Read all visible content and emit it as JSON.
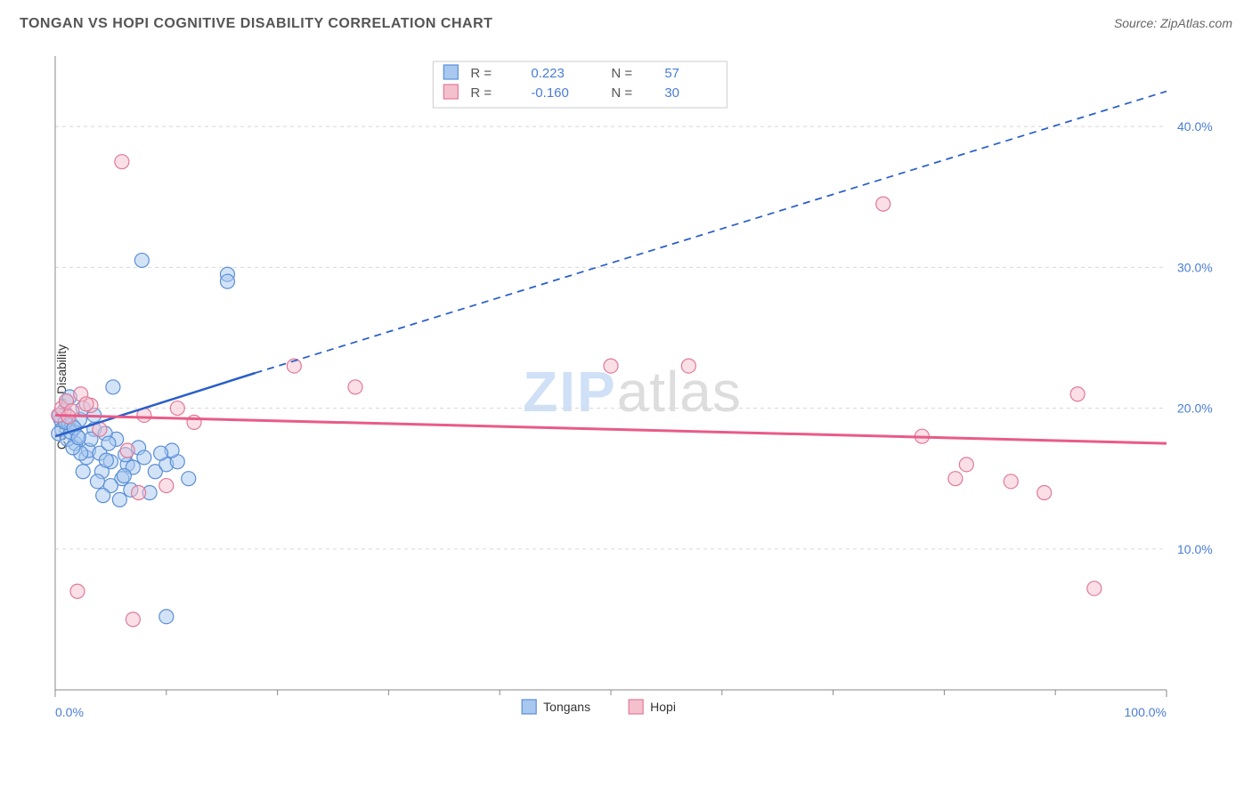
{
  "title": "TONGAN VS HOPI COGNITIVE DISABILITY CORRELATION CHART",
  "source": "Source: ZipAtlas.com",
  "y_label": "Cognitive Disability",
  "watermark_a": "ZIP",
  "watermark_b": "atlas",
  "chart": {
    "type": "scatter",
    "xlim": [
      0,
      100
    ],
    "ylim": [
      0,
      45
    ],
    "x_ticks": [
      0,
      100
    ],
    "x_tick_labels": [
      "0.0%",
      "100.0%"
    ],
    "x_minor_ticks": [
      10,
      20,
      30,
      40,
      50,
      60,
      70,
      80,
      90
    ],
    "y_ticks": [
      10,
      20,
      30,
      40
    ],
    "y_tick_labels": [
      "10.0%",
      "20.0%",
      "30.0%",
      "40.0%"
    ],
    "grid_color": "#d8d8d8",
    "axis_color": "#888888",
    "tick_label_color": "#4a7dd4",
    "tick_label_fontsize": 14,
    "background": "#ffffff",
    "marker_radius": 8,
    "marker_opacity": 0.5,
    "marker_stroke_width": 1.2,
    "series": [
      {
        "name": "Tongans",
        "color_fill": "#a8c8f0",
        "color_stroke": "#5b8fd6",
        "points": [
          [
            0.5,
            19.2
          ],
          [
            0.8,
            19.8
          ],
          [
            0.6,
            18.5
          ],
          [
            1.2,
            19.0
          ],
          [
            1.0,
            20.5
          ],
          [
            1.5,
            18.8
          ],
          [
            0.4,
            19.5
          ],
          [
            1.8,
            17.5
          ],
          [
            2.0,
            18.0
          ],
          [
            2.2,
            19.2
          ],
          [
            2.5,
            20.0
          ],
          [
            0.3,
            18.2
          ],
          [
            1.1,
            17.8
          ],
          [
            1.4,
            18.3
          ],
          [
            2.8,
            16.5
          ],
          [
            3.0,
            17.0
          ],
          [
            3.5,
            18.5
          ],
          [
            4.0,
            16.8
          ],
          [
            4.2,
            15.5
          ],
          [
            5.0,
            16.2
          ],
          [
            5.5,
            17.8
          ],
          [
            6.0,
            15.0
          ],
          [
            6.5,
            16.0
          ],
          [
            4.5,
            18.2
          ],
          [
            3.8,
            14.8
          ],
          [
            7.0,
            15.8
          ],
          [
            7.5,
            17.2
          ],
          [
            8.0,
            16.5
          ],
          [
            9.0,
            15.5
          ],
          [
            10.0,
            16.0
          ],
          [
            6.2,
            15.2
          ],
          [
            5.2,
            21.5
          ],
          [
            4.8,
            17.5
          ],
          [
            8.5,
            14.0
          ],
          [
            3.2,
            17.8
          ],
          [
            2.3,
            16.8
          ],
          [
            1.6,
            17.2
          ],
          [
            11.0,
            16.2
          ],
          [
            12.0,
            15.0
          ],
          [
            10.5,
            17.0
          ],
          [
            9.5,
            16.8
          ],
          [
            5.0,
            14.5
          ],
          [
            4.3,
            13.8
          ],
          [
            6.8,
            14.2
          ],
          [
            5.8,
            13.5
          ],
          [
            7.8,
            30.5
          ],
          [
            15.5,
            29.5
          ],
          [
            15.5,
            29.0
          ],
          [
            10.0,
            5.2
          ],
          [
            2.5,
            15.5
          ],
          [
            3.5,
            19.5
          ],
          [
            1.3,
            20.8
          ],
          [
            0.9,
            19.0
          ],
          [
            1.7,
            18.6
          ],
          [
            2.1,
            17.9
          ],
          [
            4.6,
            16.3
          ],
          [
            6.3,
            16.7
          ]
        ],
        "trendline": {
          "solid_from": [
            0,
            18.0
          ],
          "solid_to": [
            18,
            22.5
          ],
          "dashed_to": [
            100,
            42.5
          ],
          "color": "#2a5fc9",
          "width": 2.5
        }
      },
      {
        "name": "Hopi",
        "color_fill": "#f5c0cd",
        "color_stroke": "#e07a9a",
        "points": [
          [
            0.3,
            19.5
          ],
          [
            0.6,
            20.0
          ],
          [
            1.0,
            20.5
          ],
          [
            1.5,
            19.8
          ],
          [
            2.3,
            21.0
          ],
          [
            3.2,
            20.2
          ],
          [
            6.5,
            17.0
          ],
          [
            7.5,
            14.0
          ],
          [
            8.0,
            19.5
          ],
          [
            11.0,
            20.0
          ],
          [
            12.5,
            19.0
          ],
          [
            6.0,
            37.5
          ],
          [
            21.5,
            23.0
          ],
          [
            27.0,
            21.5
          ],
          [
            10.0,
            14.5
          ],
          [
            4.0,
            18.5
          ],
          [
            50.0,
            23.0
          ],
          [
            57.0,
            23.0
          ],
          [
            74.5,
            34.5
          ],
          [
            78.0,
            18.0
          ],
          [
            81.0,
            15.0
          ],
          [
            82.0,
            16.0
          ],
          [
            86.0,
            14.8
          ],
          [
            89.0,
            14.0
          ],
          [
            92.0,
            21.0
          ],
          [
            93.5,
            7.2
          ],
          [
            2.0,
            7.0
          ],
          [
            7.0,
            5.0
          ],
          [
            1.2,
            19.4
          ],
          [
            2.8,
            20.3
          ]
        ],
        "trendline": {
          "solid_from": [
            0,
            19.5
          ],
          "solid_to": [
            100,
            17.5
          ],
          "color": "#e95b87",
          "width": 3
        }
      }
    ],
    "legend_bottom": {
      "labels": [
        "Tongans",
        "Hopi"
      ],
      "swatch_colors": [
        "#a8c8f0",
        "#f5c0cd"
      ],
      "swatch_borders": [
        "#5b8fd6",
        "#e07a9a"
      ]
    },
    "stats_box": {
      "border_color": "#cccccc",
      "rows": [
        {
          "swatch_fill": "#a8c8f0",
          "swatch_stroke": "#5b8fd6",
          "r_label": "R =",
          "r_val": "0.223",
          "n_label": "N =",
          "n_val": "57"
        },
        {
          "swatch_fill": "#f5c0cd",
          "swatch_stroke": "#e07a9a",
          "r_label": "R =",
          "r_val": "-0.160",
          "n_label": "N =",
          "n_val": "30"
        }
      ],
      "label_color": "#555555",
      "val_color": "#4a7dd4",
      "fontsize": 15
    }
  }
}
